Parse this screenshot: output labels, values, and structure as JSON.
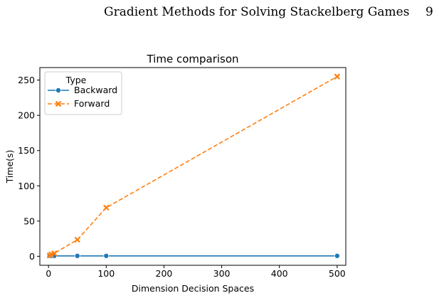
{
  "header": {
    "running_title": "Gradient Methods for Solving Stackelberg Games",
    "page_number": "9"
  },
  "chart_data": {
    "type": "line",
    "title": "Time comparison",
    "xlabel": "Dimension Decision Spaces",
    "ylabel": "Time(s)",
    "xlim": [
      -15,
      515
    ],
    "ylim": [
      -12.75,
      267.75
    ],
    "xticks": [
      0,
      100,
      200,
      300,
      400,
      500
    ],
    "yticks": [
      0,
      50,
      100,
      150,
      200,
      250
    ],
    "grid": false,
    "legend": {
      "title": "Type",
      "placement": "top-left"
    },
    "series": [
      {
        "name": "Backward",
        "color": "#1f77b4",
        "style": "solid",
        "marker": "circle",
        "x": [
          2,
          5,
          10,
          50,
          100,
          500
        ],
        "y": [
          0.5,
          0.5,
          0.6,
          0.6,
          0.6,
          0.6
        ]
      },
      {
        "name": "Forward",
        "color": "#ff7f0e",
        "style": "dashed",
        "marker": "x",
        "x": [
          2,
          5,
          10,
          50,
          100,
          500
        ],
        "y": [
          1.2,
          2.8,
          4.2,
          23.5,
          69,
          255
        ]
      }
    ]
  }
}
